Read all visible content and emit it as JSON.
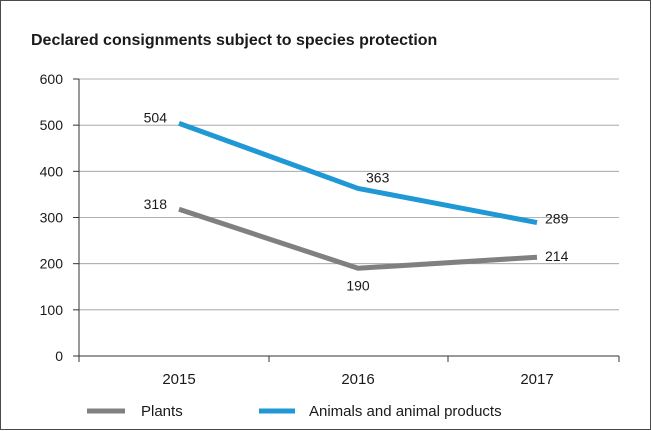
{
  "chart_data": {
    "type": "line",
    "title": "Declared consignments subject to species protection",
    "xlabel": "",
    "ylabel": "",
    "categories": [
      "2015",
      "2016",
      "2017"
    ],
    "ylim": [
      0,
      600
    ],
    "yticks": [
      0,
      100,
      200,
      300,
      400,
      500,
      600
    ],
    "grid": true,
    "legend": "bottom",
    "series": [
      {
        "name": "Plants",
        "values": [
          318,
          190,
          214
        ],
        "labels": [
          "318",
          "190",
          "214"
        ],
        "color": "#808080"
      },
      {
        "name": "Animals and animal products",
        "values": [
          504,
          363,
          289
        ],
        "labels": [
          "504",
          "363",
          "289"
        ],
        "color": "#1f98d5"
      }
    ]
  }
}
